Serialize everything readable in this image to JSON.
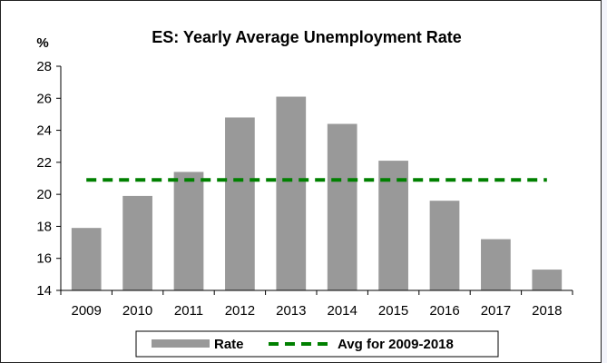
{
  "chart_data": {
    "type": "bar",
    "title": "ES: Yearly Average Unemployment Rate",
    "ylabel": "%",
    "xlabel": "",
    "categories": [
      "2009",
      "2010",
      "2011",
      "2012",
      "2013",
      "2014",
      "2015",
      "2016",
      "2017",
      "2018"
    ],
    "series": [
      {
        "name": "Rate",
        "type": "bar",
        "color": "#999999",
        "values": [
          17.9,
          19.9,
          21.4,
          24.8,
          26.1,
          24.4,
          22.1,
          19.6,
          17.2,
          15.3
        ]
      },
      {
        "name": "Avg for 2009-2018",
        "type": "line",
        "style": "dashed",
        "color": "#008000",
        "values": [
          20.9,
          20.9,
          20.9,
          20.9,
          20.9,
          20.9,
          20.9,
          20.9,
          20.9,
          20.9
        ]
      }
    ],
    "ylim": [
      14,
      28
    ],
    "yticks": [
      14,
      16,
      18,
      20,
      22,
      24,
      26,
      28
    ],
    "grid": false,
    "legend_position": "bottom"
  }
}
